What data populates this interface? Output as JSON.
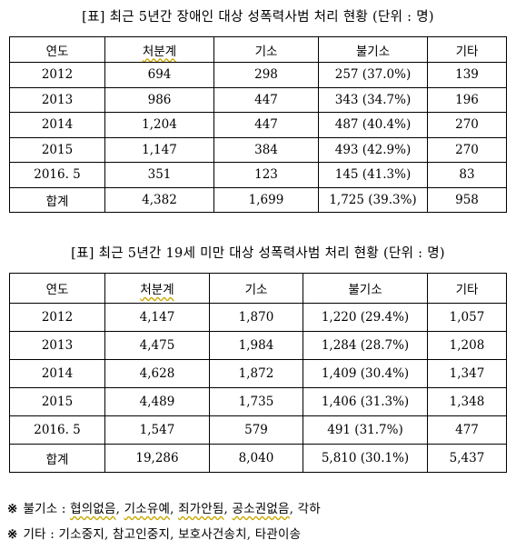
{
  "table1": {
    "caption": "[표] 최근 5년간 장애인 대상 성폭력사범 처리 현황 (단위 : 명)",
    "headers": [
      "연도",
      "처분계",
      "기소",
      "불기소",
      "기타"
    ],
    "rows": [
      [
        "2012",
        "694",
        "298",
        "257 (37.0%)",
        "139"
      ],
      [
        "2013",
        "986",
        "447",
        "343 (34.7%)",
        "196"
      ],
      [
        "2014",
        "1,204",
        "447",
        "487 (40.4%)",
        "270"
      ],
      [
        "2015",
        "1,147",
        "384",
        "493 (42.9%)",
        "270"
      ],
      [
        "2016. 5",
        "351",
        "123",
        "145 (41.3%)",
        "83"
      ],
      [
        "합계",
        "4,382",
        "1,699",
        "1,725 (39.3%)",
        "958"
      ]
    ]
  },
  "table2": {
    "caption": "[표] 최근 5년간 19세 미만 대상 성폭력사범 처리 현황 (단위 : 명)",
    "headers": [
      "연도",
      "처분계",
      "기소",
      "불기소",
      "기타"
    ],
    "rows": [
      [
        "2012",
        "4,147",
        "1,870",
        "1,220 (29.4%)",
        "1,057"
      ],
      [
        "2013",
        "4,475",
        "1,984",
        "1,284 (28.7%)",
        "1,208"
      ],
      [
        "2014",
        "4,628",
        "1,872",
        "1,409 (30.4%)",
        "1,347"
      ],
      [
        "2015",
        "4,489",
        "1,735",
        "1,406 (31.3%)",
        "1,348"
      ],
      [
        "2016. 5",
        "1,547",
        "579",
        "491 (31.7%)",
        "477"
      ],
      [
        "합계",
        "19,286",
        "8,040",
        "5,810 (30.1%)",
        "5,437"
      ]
    ]
  },
  "notes": [
    {
      "mark": "※",
      "label": "불기소 :",
      "items": [
        "협의없음",
        "기소유예",
        "죄가안됨",
        "공소권없음",
        "각하"
      ]
    },
    {
      "mark": "※",
      "label": "기타 :",
      "items": [
        "기소중지",
        "참고인중지",
        "보호사건송치",
        "타관이송"
      ]
    }
  ]
}
